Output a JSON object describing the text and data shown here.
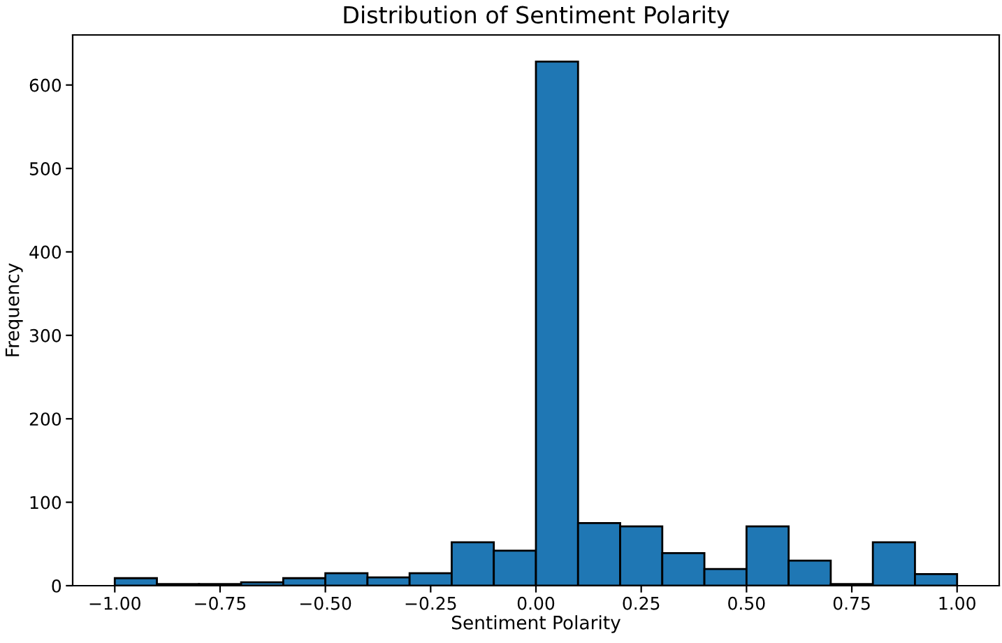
{
  "chart_data": {
    "type": "histogram",
    "title": "Distribution of Sentiment Polarity",
    "xlabel": "Sentiment Polarity",
    "ylabel": "Frequency",
    "bins": [
      -1.0,
      -0.9,
      -0.8,
      -0.7,
      -0.6,
      -0.5,
      -0.4,
      -0.3,
      -0.2,
      -0.1,
      0.0,
      0.1,
      0.2,
      0.3,
      0.4,
      0.5,
      0.6,
      0.7,
      0.8,
      0.9,
      1.0
    ],
    "values": [
      9,
      2,
      2,
      4,
      9,
      15,
      10,
      15,
      52,
      42,
      628,
      75,
      71,
      39,
      20,
      71,
      30,
      2,
      52,
      14
    ],
    "color": "#1f77b4",
    "xlim": [
      -1.1,
      1.1
    ],
    "ylim": [
      0,
      660
    ],
    "xticks": [
      {
        "value": -1.0,
        "label": "−1.00"
      },
      {
        "value": -0.75,
        "label": "−0.75"
      },
      {
        "value": -0.5,
        "label": "−0.50"
      },
      {
        "value": -0.25,
        "label": "−0.25"
      },
      {
        "value": 0.0,
        "label": "0.00"
      },
      {
        "value": 0.25,
        "label": "0.25"
      },
      {
        "value": 0.5,
        "label": "0.50"
      },
      {
        "value": 0.75,
        "label": "0.75"
      },
      {
        "value": 1.0,
        "label": "1.00"
      }
    ],
    "yticks": [
      0,
      100,
      200,
      300,
      400,
      500,
      600
    ]
  }
}
